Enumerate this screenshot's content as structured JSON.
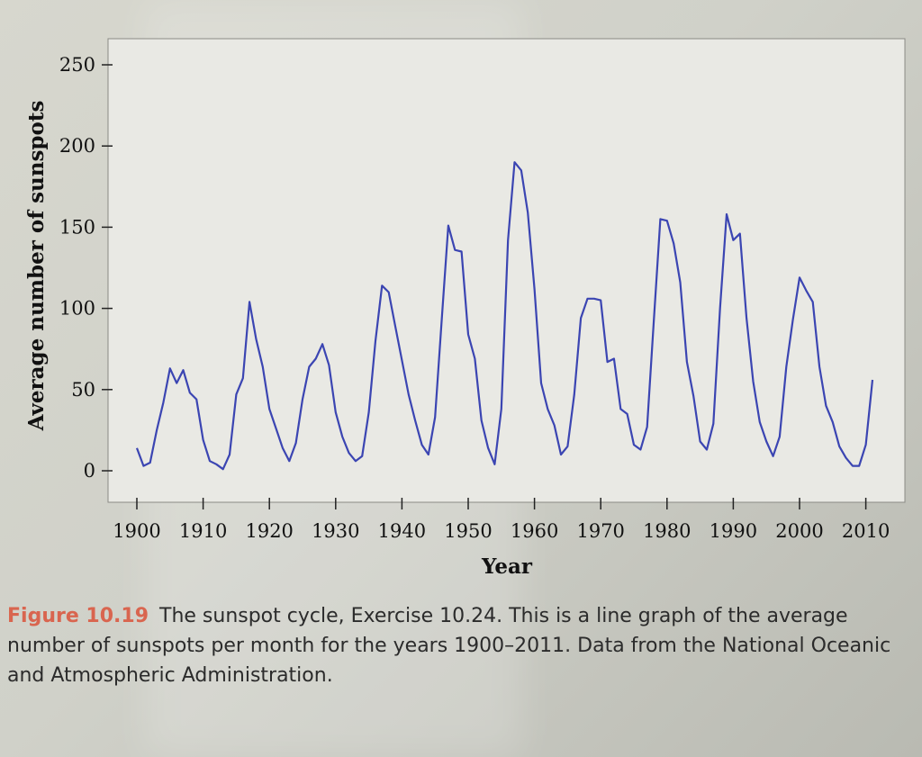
{
  "chart_data": {
    "type": "line",
    "title": "",
    "xlabel": "Year",
    "ylabel": "Average number of sunspots",
    "xlim": [
      1900,
      2011
    ],
    "ylim": [
      0,
      250
    ],
    "x_ticks": [
      1900,
      1910,
      1920,
      1930,
      1940,
      1950,
      1960,
      1970,
      1980,
      1990,
      2000,
      2010
    ],
    "y_ticks": [
      0,
      50,
      100,
      150,
      200,
      250
    ],
    "grid": false,
    "line_color": "#3b45b2",
    "series": [
      {
        "name": "",
        "points": [
          [
            1900.0,
            14
          ],
          [
            1901.0,
            3
          ],
          [
            1902.0,
            5
          ],
          [
            1903.0,
            25
          ],
          [
            1904.0,
            42
          ],
          [
            1905.0,
            63
          ],
          [
            1906.0,
            54
          ],
          [
            1907.0,
            62
          ],
          [
            1908.0,
            48
          ],
          [
            1909.0,
            44
          ],
          [
            1910.0,
            19
          ],
          [
            1911.0,
            6
          ],
          [
            1912.0,
            4
          ],
          [
            1913.0,
            1
          ],
          [
            1914.0,
            10
          ],
          [
            1915.0,
            47
          ],
          [
            1916.0,
            57
          ],
          [
            1917.0,
            104
          ],
          [
            1918.0,
            81
          ],
          [
            1919.0,
            64
          ],
          [
            1920.0,
            38
          ],
          [
            1921.0,
            26
          ],
          [
            1922.0,
            14
          ],
          [
            1923.0,
            6
          ],
          [
            1924.0,
            17
          ],
          [
            1925.0,
            44
          ],
          [
            1926.0,
            64
          ],
          [
            1927.0,
            69
          ],
          [
            1928.0,
            78
          ],
          [
            1929.0,
            65
          ],
          [
            1930.0,
            36
          ],
          [
            1931.0,
            21
          ],
          [
            1932.0,
            11
          ],
          [
            1933.0,
            6
          ],
          [
            1934.0,
            9
          ],
          [
            1935.0,
            36
          ],
          [
            1936.0,
            80
          ],
          [
            1937.0,
            114
          ],
          [
            1938.0,
            110
          ],
          [
            1939.0,
            89
          ],
          [
            1940.0,
            68
          ],
          [
            1941.0,
            47
          ],
          [
            1942.0,
            31
          ],
          [
            1943.0,
            16
          ],
          [
            1944.0,
            10
          ],
          [
            1945.0,
            33
          ],
          [
            1946.0,
            93
          ],
          [
            1947.0,
            151
          ],
          [
            1948.0,
            136
          ],
          [
            1949.0,
            135
          ],
          [
            1950.0,
            84
          ],
          [
            1951.0,
            69
          ],
          [
            1952.0,
            31
          ],
          [
            1953.0,
            14
          ],
          [
            1954.0,
            4
          ],
          [
            1955.0,
            38
          ],
          [
            1956.0,
            142
          ],
          [
            1957.0,
            190
          ],
          [
            1958.0,
            185
          ],
          [
            1959.0,
            159
          ],
          [
            1960.0,
            112
          ],
          [
            1961.0,
            54
          ],
          [
            1962.0,
            38
          ],
          [
            1963.0,
            28
          ],
          [
            1964.0,
            10
          ],
          [
            1965.0,
            15
          ],
          [
            1966.0,
            47
          ],
          [
            1967.0,
            94
          ],
          [
            1968.0,
            106
          ],
          [
            1969.0,
            106
          ],
          [
            1970.0,
            105
          ],
          [
            1971.0,
            67
          ],
          [
            1972.0,
            69
          ],
          [
            1973.0,
            38
          ],
          [
            1974.0,
            35
          ],
          [
            1975.0,
            16
          ],
          [
            1976.0,
            13
          ],
          [
            1977.0,
            27
          ],
          [
            1978.0,
            92
          ],
          [
            1979.0,
            155
          ],
          [
            1980.0,
            154
          ],
          [
            1981.0,
            140
          ],
          [
            1982.0,
            116
          ],
          [
            1983.0,
            67
          ],
          [
            1984.0,
            46
          ],
          [
            1985.0,
            18
          ],
          [
            1986.0,
            13
          ],
          [
            1987.0,
            29
          ],
          [
            1988.0,
            100
          ],
          [
            1989.0,
            158
          ],
          [
            1990.0,
            142
          ],
          [
            1991.0,
            146
          ],
          [
            1992.0,
            94
          ],
          [
            1993.0,
            55
          ],
          [
            1994.0,
            30
          ],
          [
            1995.0,
            18
          ],
          [
            1996.0,
            9
          ],
          [
            1997.0,
            21
          ],
          [
            1998.0,
            64
          ],
          [
            1999.0,
            93
          ],
          [
            2000.0,
            119
          ],
          [
            2001.0,
            111
          ],
          [
            2002.0,
            104
          ],
          [
            2003.0,
            64
          ],
          [
            2004.0,
            40
          ],
          [
            2005.0,
            30
          ],
          [
            2006.0,
            15
          ],
          [
            2007.0,
            8
          ],
          [
            2008.0,
            3
          ],
          [
            2009.0,
            3
          ],
          [
            2010.0,
            16
          ],
          [
            2011.0,
            56
          ]
        ]
      }
    ]
  },
  "caption": {
    "figure_label": "Figure 10.19",
    "text": "The sunspot cycle, Exercise 10.24. This is a line graph of the average number of sunspots per month for the years 1900–2011. Data from the National Oceanic and Atmospheric Administration."
  }
}
